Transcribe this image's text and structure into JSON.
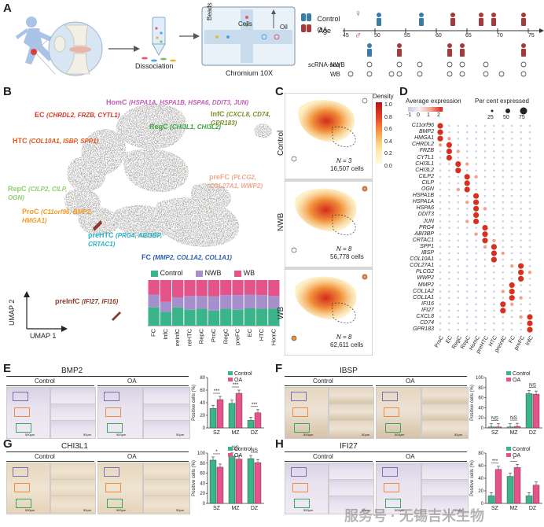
{
  "panels": {
    "A": "A",
    "B": "B",
    "C": "C",
    "D": "D",
    "E": "E",
    "F": "F",
    "G": "G",
    "H": "H"
  },
  "panelA": {
    "dissociation": "Dissociation",
    "chromium": "Chromium 10X",
    "beads": "Beads",
    "cells": "Cells",
    "oil": "Oil",
    "legend_control": "Control",
    "legend_oa": "OA",
    "age_label": "Age",
    "ages": [
      "45",
      "50",
      "55",
      "60",
      "65",
      "70",
      "75"
    ],
    "scrnaseq": "scRNA-seq",
    "nwb": "NWB",
    "wb": "WB"
  },
  "panelB": {
    "clusters": [
      {
        "name": "HomC",
        "genes": "(HSPA1A, HSPA1B, HSPA6, DDIT3, JUN)",
        "color": "#c060b8"
      },
      {
        "name": "EC",
        "genes": "(CHRDL2, FRZB, CYTL1)",
        "color": "#d83a2a"
      },
      {
        "name": "HTC",
        "genes": "(COL10A1, ISBP, SPP1)",
        "color": "#e0541e"
      },
      {
        "name": "RegC",
        "genes": "(CHI3L1, CHI3L2)",
        "color": "#3aa540"
      },
      {
        "name": "InfC",
        "genes": "(CXCL8, CD74, GPR183)",
        "color": "#7a8f2a"
      },
      {
        "name": "preFC",
        "genes": "(PLCG2, COL27A1, WWP2)",
        "color": "#f0a78f"
      },
      {
        "name": "RepC",
        "genes": "(CILP2, CILP, OGN)",
        "color": "#8fcf6a"
      },
      {
        "name": "ProC",
        "genes": "(C11orf96, BMP2, HMGA1)",
        "color": "#f29a1f"
      },
      {
        "name": "preHTC",
        "genes": "(PRG4, ABI3BP, CRTAC1)",
        "color": "#27b3c4"
      },
      {
        "name": "FC",
        "genes": "(MMP2, COL1A2, COL1A1)",
        "color": "#2f5fb0"
      },
      {
        "name": "preInfC",
        "genes": "(IFI27, IFI16)",
        "color": "#8c3a2e"
      }
    ],
    "umap1": "UMAP 1",
    "umap2": "UMAP 2"
  },
  "chart_data": [
    {
      "type": "bar",
      "id": "composition",
      "stacked": true,
      "categories": [
        "FC",
        "InfC",
        "preInfC",
        "preHTC",
        "RepC",
        "ProC",
        "RegC",
        "preFC",
        "EC",
        "HTC",
        "HomC"
      ],
      "series": [
        {
          "name": "Control",
          "color": "#3ab58a",
          "values": [
            0.4,
            0.3,
            0.4,
            0.35,
            0.37,
            0.33,
            0.37,
            0.35,
            0.38,
            0.37,
            0.37
          ]
        },
        {
          "name": "NWB",
          "color": "#a58fcc",
          "values": [
            0.28,
            0.22,
            0.22,
            0.3,
            0.28,
            0.31,
            0.3,
            0.32,
            0.3,
            0.3,
            0.28
          ]
        },
        {
          "name": "WB",
          "color": "#e4548b",
          "values": [
            0.32,
            0.48,
            0.38,
            0.35,
            0.35,
            0.36,
            0.33,
            0.33,
            0.32,
            0.33,
            0.35
          ]
        }
      ],
      "ylim": [
        0,
        1
      ]
    },
    {
      "type": "bar",
      "id": "E",
      "title": "BMP2",
      "categories": [
        "SZ",
        "MZ",
        "DZ"
      ],
      "ylabel": "Positive cells (%)",
      "ylim": [
        0,
        80
      ],
      "yticks": [
        "0",
        "20",
        "40",
        "60",
        "80"
      ],
      "series": [
        {
          "name": "Control",
          "color": "#3ab58a",
          "values": [
            31,
            39,
            12
          ]
        },
        {
          "name": "OA",
          "color": "#e4548b",
          "values": [
            45,
            55,
            24
          ]
        }
      ],
      "sig": [
        "***",
        "***",
        "***"
      ]
    },
    {
      "type": "bar",
      "id": "F",
      "title": "IBSP",
      "categories": [
        "SZ",
        "MZ",
        "DZ"
      ],
      "ylabel": "Positive cells (%)",
      "ylim": [
        0,
        100
      ],
      "yticks": [
        "0",
        "20",
        "40",
        "60",
        "80",
        "100"
      ],
      "series": [
        {
          "name": "Control",
          "color": "#3ab58a",
          "values": [
            2,
            2,
            68
          ]
        },
        {
          "name": "OA",
          "color": "#e4548b",
          "values": [
            2,
            3,
            67
          ]
        }
      ],
      "sig": [
        "NS",
        "NS",
        "NS"
      ]
    },
    {
      "type": "bar",
      "id": "G",
      "title": "CHI3L1",
      "categories": [
        "SZ",
        "MZ",
        "DZ"
      ],
      "ylabel": "Positive cells (%)",
      "ylim": [
        0,
        100
      ],
      "yticks": [
        "0",
        "20",
        "40",
        "60",
        "80",
        "100"
      ],
      "series": [
        {
          "name": "Control",
          "color": "#3ab58a",
          "values": [
            86,
            94,
            89
          ]
        },
        {
          "name": "OA",
          "color": "#e4548b",
          "values": [
            72,
            88,
            81
          ]
        }
      ],
      "sig": [
        "*",
        "NS",
        "NS"
      ]
    },
    {
      "type": "bar",
      "id": "H",
      "title": "IFI27",
      "categories": [
        "SZ",
        "MZ",
        "DZ"
      ],
      "ylabel": "Positive cells (%)",
      "ylim": [
        0,
        80
      ],
      "yticks": [
        "0",
        "20",
        "40",
        "60",
        "80"
      ],
      "series": [
        {
          "name": "Control",
          "color": "#3ab58a",
          "values": [
            12,
            43,
            12
          ]
        },
        {
          "name": "OA",
          "color": "#e4548b",
          "values": [
            54,
            57,
            29
          ]
        }
      ],
      "sig": [
        "***",
        "*",
        ""
      ]
    }
  ],
  "panelC": {
    "density": "Density",
    "ticks": [
      "1.0",
      "0.8",
      "0.6",
      "0.4",
      "0.2",
      "0.0"
    ],
    "groups": [
      {
        "name": "Control",
        "n": "N = 3",
        "cells": "16,507 cells"
      },
      {
        "name": "NWB",
        "n": "N = 8",
        "cells": "56,778 cells"
      },
      {
        "name": "WB",
        "n": "N = 8",
        "cells": "62,611 cells"
      }
    ]
  },
  "panelD": {
    "avg_expr": "Average expression",
    "avg_ticks": [
      "-1",
      "0",
      "1",
      "2"
    ],
    "pct_expr": "Per cent expressed",
    "pct_ticks": [
      "25",
      "50",
      "75"
    ],
    "genes": [
      "C11orf96",
      "BMP2",
      "HMGA1",
      "CHRDL2",
      "FRZB",
      "CYTL1",
      "CHI3L1",
      "CHI3L2",
      "CILP2",
      "CILP",
      "OGN",
      "HSPA1B",
      "HSPA1A",
      "HSPA6",
      "DDIT3",
      "JUN",
      "PRG4",
      "ABI3BP",
      "CRTAC1",
      "SPP1",
      "IBSP",
      "COL10A1",
      "COL27A1",
      "PLCG2",
      "WWP2",
      "MMP2",
      "COL1A2",
      "COL1A1",
      "IFI16",
      "IFI27",
      "CXCL8",
      "CD74",
      "GPR183"
    ],
    "clusters": [
      "ProC",
      "EC",
      "RegC",
      "RepC",
      "HomC",
      "preHTC",
      "HTC",
      "preInfC",
      "FC",
      "preFC",
      "InfC"
    ]
  },
  "ihc": {
    "control": "Control",
    "oa": "OA",
    "scale500": "500μm",
    "scale50": "50μm"
  },
  "watermark": "服务号 · 无锡吉米生物"
}
